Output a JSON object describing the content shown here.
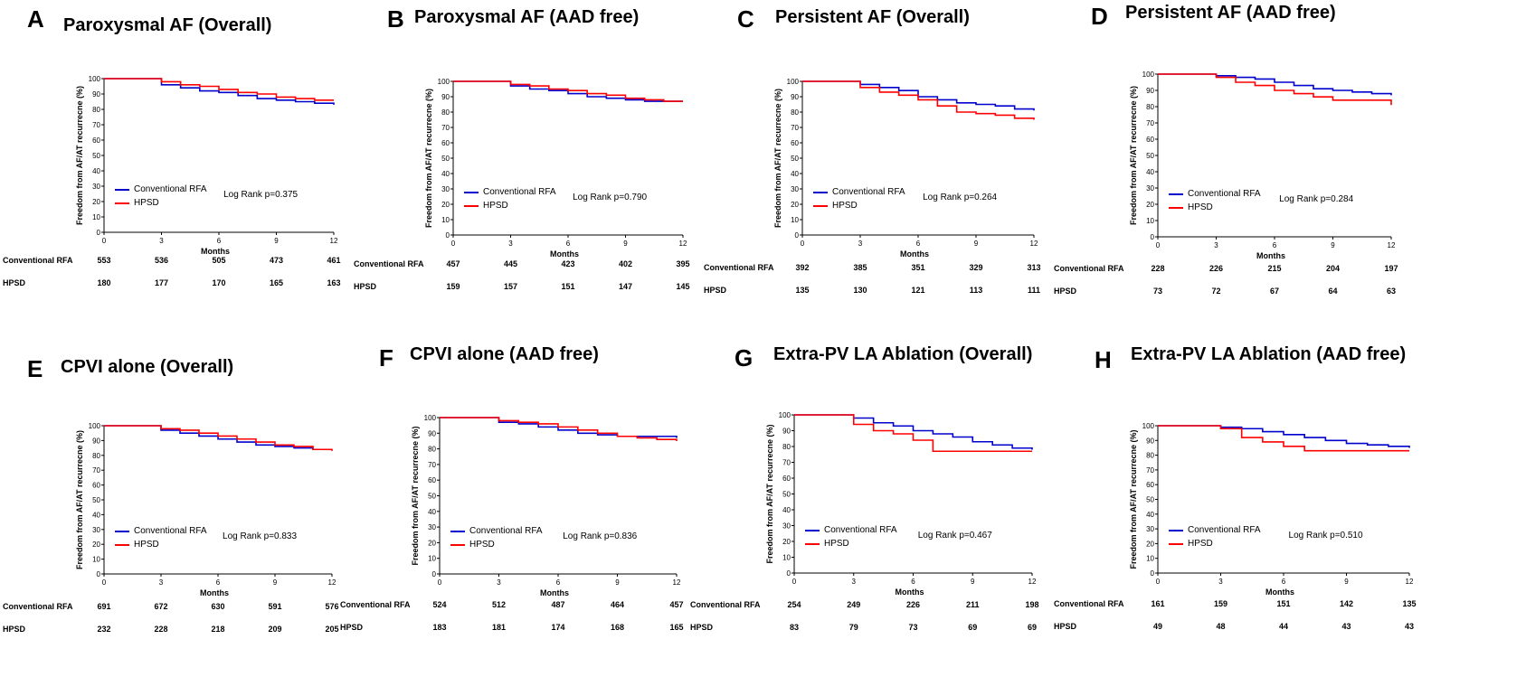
{
  "colors": {
    "conventional": "#0000cc",
    "hpsd": "#ff0000"
  },
  "common": {
    "ylabel": "Freedom from AF/AT recurrecne (%)",
    "xlabel": "Months",
    "legend_conventional": "Conventional RFA",
    "legend_hpsd": "HPSD",
    "risk_label_conventional": "Conventional RFA",
    "risk_label_hpsd": "HPSD"
  },
  "chart_data": [
    {
      "type": "line",
      "letter": "A",
      "title": "Paroxysmal AF (Overall)",
      "xlabel": "Months",
      "ylabel": "Freedom from AF/AT recurrecne (%)",
      "xlim": [
        0,
        12
      ],
      "ylim": [
        0,
        100
      ],
      "xticks": [
        0,
        3,
        6,
        9,
        12
      ],
      "yticks": [
        0,
        10,
        20,
        30,
        40,
        50,
        60,
        70,
        80,
        90,
        100
      ],
      "logrank": "Log Rank p=0.375",
      "series": [
        {
          "name": "Conventional RFA",
          "color": "#0000cc",
          "x": [
            0,
            3,
            4,
            5,
            6,
            7,
            8,
            9,
            10,
            11,
            12
          ],
          "y": [
            100,
            96,
            94,
            92,
            91,
            89,
            87,
            86,
            85,
            84,
            83
          ]
        },
        {
          "name": "HPSD",
          "color": "#ff0000",
          "x": [
            0,
            3,
            4,
            5,
            6,
            7,
            8,
            9,
            10,
            11,
            12
          ],
          "y": [
            100,
            98,
            96,
            95,
            93,
            91,
            90,
            88,
            87,
            86,
            86
          ]
        }
      ],
      "risk_table": {
        "conventional": [
          "553",
          "536",
          "505",
          "473",
          "461"
        ],
        "hpsd": [
          "180",
          "177",
          "170",
          "165",
          "163"
        ]
      }
    },
    {
      "type": "line",
      "letter": "B",
      "title": "Paroxysmal AF (AAD free)",
      "xlabel": "Months",
      "ylabel": "Freedom from AF/AT recurrecne (%)",
      "xlim": [
        0,
        12
      ],
      "ylim": [
        0,
        100
      ],
      "xticks": [
        0,
        3,
        6,
        9,
        12
      ],
      "yticks": [
        0,
        10,
        20,
        30,
        40,
        50,
        60,
        70,
        80,
        90,
        100
      ],
      "logrank": "Log Rank p=0.790",
      "series": [
        {
          "name": "Conventional RFA",
          "color": "#0000cc",
          "x": [
            0,
            3,
            4,
            5,
            6,
            7,
            8,
            9,
            10,
            11,
            12
          ],
          "y": [
            100,
            97,
            95,
            94,
            92,
            90,
            89,
            88,
            87,
            87,
            87
          ]
        },
        {
          "name": "HPSD",
          "color": "#ff0000",
          "x": [
            0,
            3,
            4,
            5,
            6,
            7,
            8,
            9,
            10,
            11,
            12
          ],
          "y": [
            100,
            98,
            97,
            95,
            94,
            92,
            91,
            89,
            88,
            87,
            87
          ]
        }
      ],
      "risk_table": {
        "conventional": [
          "457",
          "445",
          "423",
          "402",
          "395"
        ],
        "hpsd": [
          "159",
          "157",
          "151",
          "147",
          "145"
        ]
      }
    },
    {
      "type": "line",
      "letter": "C",
      "title": "Persistent AF (Overall)",
      "xlabel": "Months",
      "ylabel": "Freedom from AF/AT recurrecne (%)",
      "xlim": [
        0,
        12
      ],
      "ylim": [
        0,
        100
      ],
      "xticks": [
        0,
        3,
        6,
        9,
        12
      ],
      "yticks": [
        0,
        10,
        20,
        30,
        40,
        50,
        60,
        70,
        80,
        90,
        100
      ],
      "logrank": "Log Rank p=0.264",
      "series": [
        {
          "name": "Conventional RFA",
          "color": "#0000cc",
          "x": [
            0,
            3,
            4,
            5,
            6,
            7,
            8,
            9,
            10,
            11,
            12
          ],
          "y": [
            100,
            98,
            96,
            94,
            90,
            88,
            86,
            85,
            84,
            82,
            81
          ]
        },
        {
          "name": "HPSD",
          "color": "#ff0000",
          "x": [
            0,
            3,
            4,
            5,
            6,
            7,
            8,
            9,
            10,
            11,
            12
          ],
          "y": [
            100,
            96,
            93,
            91,
            88,
            84,
            80,
            79,
            78,
            76,
            75
          ]
        }
      ],
      "risk_table": {
        "conventional": [
          "392",
          "385",
          "351",
          "329",
          "313"
        ],
        "hpsd": [
          "135",
          "130",
          "121",
          "113",
          "111"
        ]
      }
    },
    {
      "type": "line",
      "letter": "D",
      "title": "Persistent AF (AAD free)",
      "xlabel": "Months",
      "ylabel": "Freedom from AF/AT recurrecne (%)",
      "xlim": [
        0,
        12
      ],
      "ylim": [
        0,
        100
      ],
      "xticks": [
        0,
        3,
        6,
        9,
        12
      ],
      "yticks": [
        0,
        10,
        20,
        30,
        40,
        50,
        60,
        70,
        80,
        90,
        100
      ],
      "logrank": "Log Rank p=0.284",
      "series": [
        {
          "name": "Conventional RFA",
          "color": "#0000cc",
          "x": [
            0,
            3,
            4,
            5,
            6,
            7,
            8,
            9,
            10,
            11,
            12
          ],
          "y": [
            100,
            99,
            98,
            97,
            95,
            93,
            91,
            90,
            89,
            88,
            87
          ]
        },
        {
          "name": "HPSD",
          "color": "#ff0000",
          "x": [
            0,
            3,
            4,
            5,
            6,
            7,
            8,
            9,
            10,
            11,
            12
          ],
          "y": [
            100,
            98,
            95,
            93,
            90,
            88,
            86,
            84,
            84,
            84,
            81
          ]
        }
      ],
      "risk_table": {
        "conventional": [
          "228",
          "226",
          "215",
          "204",
          "197"
        ],
        "hpsd": [
          "73",
          "72",
          "67",
          "64",
          "63"
        ]
      }
    },
    {
      "type": "line",
      "letter": "E",
      "title": "CPVI alone (Overall)",
      "xlabel": "Months",
      "ylabel": "Freedom from AF/AT recurrecne (%)",
      "xlim": [
        0,
        12
      ],
      "ylim": [
        0,
        100
      ],
      "xticks": [
        0,
        3,
        6,
        9,
        12
      ],
      "yticks": [
        0,
        10,
        20,
        30,
        40,
        50,
        60,
        70,
        80,
        90,
        100
      ],
      "logrank": "Log Rank p=0.833",
      "series": [
        {
          "name": "Conventional RFA",
          "color": "#0000cc",
          "x": [
            0,
            3,
            4,
            5,
            6,
            7,
            8,
            9,
            10,
            11,
            12
          ],
          "y": [
            100,
            97,
            95,
            93,
            91,
            89,
            87,
            86,
            85,
            84,
            84
          ]
        },
        {
          "name": "HPSD",
          "color": "#ff0000",
          "x": [
            0,
            3,
            4,
            5,
            6,
            7,
            8,
            9,
            10,
            11,
            12
          ],
          "y": [
            100,
            98,
            97,
            95,
            93,
            91,
            89,
            87,
            86,
            84,
            83
          ]
        }
      ],
      "risk_table": {
        "conventional": [
          "691",
          "672",
          "630",
          "591",
          "576"
        ],
        "hpsd": [
          "232",
          "228",
          "218",
          "209",
          "205"
        ]
      }
    },
    {
      "type": "line",
      "letter": "F",
      "title": "CPVI alone (AAD free)",
      "xlabel": "Months",
      "ylabel": "Freedom from AF/AT recurrecne (%)",
      "xlim": [
        0,
        12
      ],
      "ylim": [
        0,
        100
      ],
      "xticks": [
        0,
        3,
        6,
        9,
        12
      ],
      "yticks": [
        0,
        10,
        20,
        30,
        40,
        50,
        60,
        70,
        80,
        90,
        100
      ],
      "logrank": "Log Rank p=0.836",
      "series": [
        {
          "name": "Conventional RFA",
          "color": "#0000cc",
          "x": [
            0,
            3,
            4,
            5,
            6,
            7,
            8,
            9,
            10,
            11,
            12
          ],
          "y": [
            100,
            97,
            96,
            94,
            92,
            90,
            89,
            88,
            88,
            88,
            87
          ]
        },
        {
          "name": "HPSD",
          "color": "#ff0000",
          "x": [
            0,
            3,
            4,
            5,
            6,
            7,
            8,
            9,
            10,
            11,
            12
          ],
          "y": [
            100,
            98,
            97,
            96,
            94,
            92,
            90,
            88,
            87,
            86,
            85
          ]
        }
      ],
      "risk_table": {
        "conventional": [
          "524",
          "512",
          "487",
          "464",
          "457"
        ],
        "hpsd": [
          "183",
          "181",
          "174",
          "168",
          "165"
        ]
      }
    },
    {
      "type": "line",
      "letter": "G",
      "title": "Extra-PV LA Ablation (Overall)",
      "xlabel": "Months",
      "ylabel": "Freedom from AF/AT recurrecne (%)",
      "xlim": [
        0,
        12
      ],
      "ylim": [
        0,
        100
      ],
      "xticks": [
        0,
        3,
        6,
        9,
        12
      ],
      "yticks": [
        0,
        10,
        20,
        30,
        40,
        50,
        60,
        70,
        80,
        90,
        100
      ],
      "logrank": "Log Rank p=0.467",
      "series": [
        {
          "name": "Conventional RFA",
          "color": "#0000cc",
          "x": [
            0,
            3,
            4,
            5,
            6,
            7,
            8,
            9,
            10,
            11,
            12
          ],
          "y": [
            100,
            98,
            95,
            93,
            90,
            88,
            86,
            83,
            81,
            79,
            78
          ]
        },
        {
          "name": "HPSD",
          "color": "#ff0000",
          "x": [
            0,
            3,
            4,
            5,
            6,
            7,
            8,
            9,
            10,
            11,
            12
          ],
          "y": [
            100,
            94,
            90,
            88,
            84,
            77,
            77,
            77,
            77,
            77,
            77
          ]
        }
      ],
      "risk_table": {
        "conventional": [
          "254",
          "249",
          "226",
          "211",
          "198"
        ],
        "hpsd": [
          "83",
          "79",
          "73",
          "69",
          "69"
        ]
      }
    },
    {
      "type": "line",
      "letter": "H",
      "title": "Extra-PV LA Ablation (AAD free)",
      "xlabel": "Months",
      "ylabel": "Freedom from AF/AT recurrecne (%)",
      "xlim": [
        0,
        12
      ],
      "ylim": [
        0,
        100
      ],
      "xticks": [
        0,
        3,
        6,
        9,
        12
      ],
      "yticks": [
        0,
        10,
        20,
        30,
        40,
        50,
        60,
        70,
        80,
        90,
        100
      ],
      "logrank": "Log Rank p=0.510",
      "series": [
        {
          "name": "Conventional RFA",
          "color": "#0000cc",
          "x": [
            0,
            3,
            4,
            5,
            6,
            7,
            8,
            9,
            10,
            11,
            12
          ],
          "y": [
            100,
            99,
            98,
            96,
            94,
            92,
            90,
            88,
            87,
            86,
            85
          ]
        },
        {
          "name": "HPSD",
          "color": "#ff0000",
          "x": [
            0,
            3,
            4,
            5,
            6,
            7,
            8,
            9,
            10,
            11,
            12
          ],
          "y": [
            100,
            98,
            92,
            89,
            86,
            83,
            83,
            83,
            83,
            83,
            83
          ]
        }
      ],
      "risk_table": {
        "conventional": [
          "161",
          "159",
          "151",
          "142",
          "135"
        ],
        "hpsd": [
          "49",
          "48",
          "44",
          "43",
          "43"
        ]
      }
    }
  ]
}
